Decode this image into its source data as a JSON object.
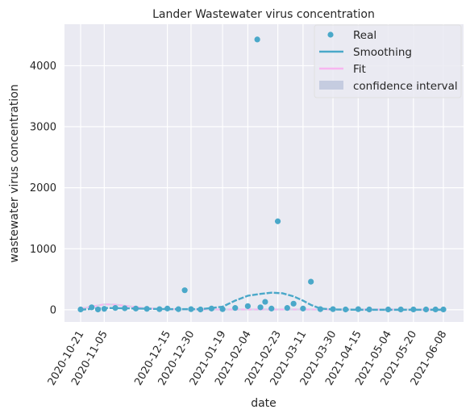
{
  "chart_data": {
    "type": "scatter",
    "title": "Lander Wastewater virus concentration",
    "xlabel": "date",
    "ylabel": "wastewater virus concentration",
    "x_ticks": [
      "2020-10-21",
      "2020-11-05",
      "2020-12-15",
      "2020-12-30",
      "2021-01-19",
      "2021-02-04",
      "2021-02-23",
      "2021-03-11",
      "2021-03-30",
      "2021-04-15",
      "2021-05-04",
      "2021-05-20",
      "2021-06-08"
    ],
    "y_ticks": [
      "0",
      "1000",
      "2000",
      "3000",
      "4000"
    ],
    "ylim": [
      -200,
      4680
    ],
    "grid": true,
    "legend_position": "top-right",
    "colors": {
      "real": "#4aa8c9",
      "smoothing": "#4aa8c9",
      "fit": "#f7b6f0",
      "confidence": "#c5cce0",
      "plot_bg": "#eaeaf2",
      "grid": "#ffffff"
    },
    "legend": [
      {
        "label": "Real",
        "kind": "marker",
        "color": "#4aa8c9"
      },
      {
        "label": "Smoothing",
        "kind": "line",
        "color": "#4aa8c9"
      },
      {
        "label": "Fit",
        "kind": "line",
        "color": "#f7b6f0"
      },
      {
        "label": "confidence interval",
        "kind": "patch",
        "color": "#c5cce0"
      }
    ],
    "series": [
      {
        "name": "Real",
        "kind": "scatter",
        "points": [
          [
            "2020-10-21",
            5
          ],
          [
            "2020-10-28",
            40
          ],
          [
            "2020-11-01",
            5
          ],
          [
            "2020-11-05",
            15
          ],
          [
            "2020-11-12",
            30
          ],
          [
            "2020-11-18",
            25
          ],
          [
            "2020-11-25",
            20
          ],
          [
            "2020-12-02",
            15
          ],
          [
            "2020-12-10",
            10
          ],
          [
            "2020-12-15",
            20
          ],
          [
            "2020-12-22",
            10
          ],
          [
            "2020-12-26",
            320
          ],
          [
            "2020-12-30",
            10
          ],
          [
            "2021-01-05",
            5
          ],
          [
            "2021-01-12",
            20
          ],
          [
            "2021-01-19",
            10
          ],
          [
            "2021-01-27",
            30
          ],
          [
            "2021-02-04",
            60
          ],
          [
            "2021-02-10",
            4430
          ],
          [
            "2021-02-12",
            40
          ],
          [
            "2021-02-15",
            130
          ],
          [
            "2021-02-19",
            20
          ],
          [
            "2021-02-23",
            1450
          ],
          [
            "2021-03-01",
            30
          ],
          [
            "2021-03-05",
            100
          ],
          [
            "2021-03-11",
            20
          ],
          [
            "2021-03-16",
            460
          ],
          [
            "2021-03-22",
            10
          ],
          [
            "2021-03-30",
            10
          ],
          [
            "2021-04-07",
            5
          ],
          [
            "2021-04-15",
            10
          ],
          [
            "2021-04-22",
            5
          ],
          [
            "2021-05-04",
            5
          ],
          [
            "2021-05-12",
            5
          ],
          [
            "2021-05-20",
            5
          ],
          [
            "2021-05-28",
            5
          ],
          [
            "2021-06-03",
            5
          ],
          [
            "2021-06-08",
            5
          ]
        ]
      },
      {
        "name": "Smoothing",
        "kind": "line",
        "points": [
          [
            "2020-10-21",
            0
          ],
          [
            "2020-11-05",
            30
          ],
          [
            "2020-11-25",
            20
          ],
          [
            "2020-12-15",
            10
          ],
          [
            "2021-01-05",
            10
          ],
          [
            "2021-01-19",
            50
          ],
          [
            "2021-01-27",
            150
          ],
          [
            "2021-02-04",
            230
          ],
          [
            "2021-02-12",
            260
          ],
          [
            "2021-02-19",
            280
          ],
          [
            "2021-02-26",
            270
          ],
          [
            "2021-03-05",
            220
          ],
          [
            "2021-03-11",
            150
          ],
          [
            "2021-03-16",
            80
          ],
          [
            "2021-03-22",
            20
          ],
          [
            "2021-03-30",
            5
          ],
          [
            "2021-04-15",
            0
          ],
          [
            "2021-05-04",
            0
          ],
          [
            "2021-05-20",
            0
          ],
          [
            "2021-06-08",
            0
          ]
        ]
      },
      {
        "name": "Fit",
        "kind": "line",
        "points": [
          [
            "2020-10-21",
            20
          ],
          [
            "2020-10-28",
            50
          ],
          [
            "2020-11-05",
            90
          ],
          [
            "2020-11-12",
            85
          ],
          [
            "2020-11-20",
            60
          ],
          [
            "2020-12-01",
            25
          ],
          [
            "2020-12-15",
            10
          ],
          [
            "2020-12-30",
            5
          ],
          [
            "2021-01-19",
            5
          ],
          [
            "2021-02-23",
            5
          ],
          [
            "2021-03-30",
            5
          ],
          [
            "2021-05-04",
            5
          ],
          [
            "2021-06-08",
            5
          ]
        ]
      }
    ]
  }
}
